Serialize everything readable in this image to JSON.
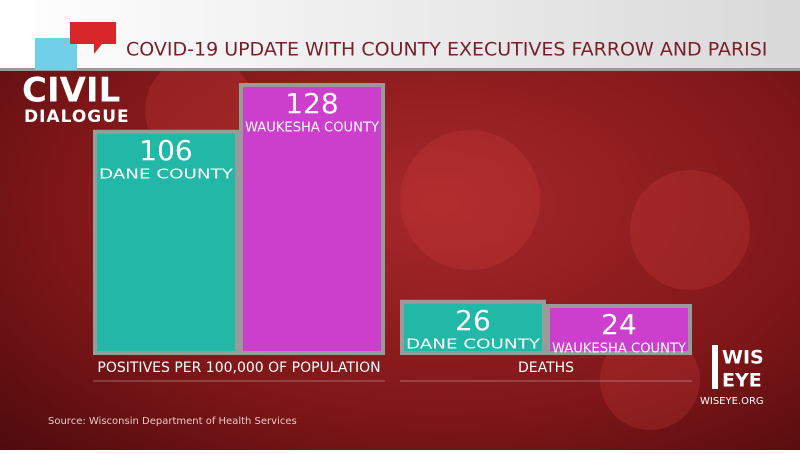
{
  "chart_data": {
    "type": "bar",
    "title": "COVID-19 UPDATE WITH COUNTY EXECUTIVES FARROW AND PARISI",
    "categories": [
      "POSITIVES PER 100,000 OF POPULATION",
      "DEATHS"
    ],
    "series": [
      {
        "name": "DANE COUNTY",
        "color": "#22b8a8",
        "values": [
          106,
          26
        ]
      },
      {
        "name": "WAUKESHA COUNTY",
        "color": "#cc3fcc",
        "values": [
          128,
          24
        ]
      }
    ],
    "ylim": [
      0,
      128
    ],
    "source": "Source: Wisconsin Department of Health Services"
  },
  "branding": {
    "show_top": "CIVIL",
    "show_bottom": "DIALOGUE",
    "channel_top": "WIS",
    "channel_bottom": "EYE",
    "channel_url": "WISEYE.ORG"
  }
}
